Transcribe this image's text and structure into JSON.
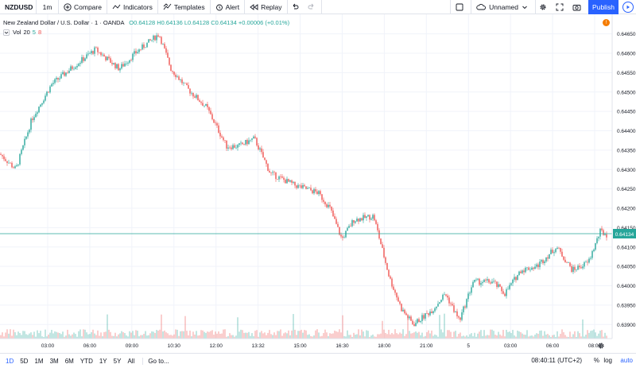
{
  "toolbar": {
    "symbol": "NZDUSD",
    "interval": "1m",
    "compare": "Compare",
    "indicators": "Indicators",
    "templates": "Templates",
    "alert": "Alert",
    "replay": "Replay",
    "layout_name": "Unnamed",
    "publish": "Publish"
  },
  "legend": {
    "title": "New Zealand Dollar / U.S. Dollar · 1 · OANDA",
    "ohlc": "O0.64128 H0.64136 L0.64128 C0.64134 +0.00006 (+0.01%)",
    "vol_label": "Vol",
    "vol_len": "20",
    "vol_up": "5",
    "vol_down": "8"
  },
  "alert_badge": "!",
  "price_label": "0.64134",
  "range_bar": {
    "ranges": [
      "1D",
      "5D",
      "1M",
      "3M",
      "6M",
      "YTD",
      "1Y",
      "5Y",
      "All"
    ],
    "active": "1D",
    "goto": "Go to...",
    "clock": "08:40:11 (UTC+2)",
    "percent": "%",
    "log": "log",
    "auto": "auto"
  },
  "colors": {
    "up": "#26a69a",
    "down": "#ef5350",
    "price_line": "#26a69a",
    "accent": "#2962ff"
  },
  "chart_data": {
    "type": "candlestick",
    "y_ticks": [
      "0.64650",
      "0.64600",
      "0.64550",
      "0.64500",
      "0.64450",
      "0.64400",
      "0.64350",
      "0.64300",
      "0.64250",
      "0.64200",
      "0.64150",
      "0.64100",
      "0.64050",
      "0.64000",
      "0.63950",
      "0.63900"
    ],
    "ylim": [
      0.6388,
      0.6468
    ],
    "x_ticks": [
      "03:00",
      "06:00",
      "09:00",
      "10:30",
      "12:00",
      "13:32",
      "15:00",
      "16:30",
      "18:00",
      "21:00",
      "5",
      "03:00",
      "06:00",
      "08:00"
    ],
    "last_price": 0.64134,
    "trend": [
      [
        0,
        0.6434
      ],
      [
        20,
        0.643
      ],
      [
        40,
        0.6443
      ],
      [
        65,
        0.6452
      ],
      [
        95,
        0.6457
      ],
      [
        120,
        0.6461
      ],
      [
        150,
        0.6456
      ],
      [
        170,
        0.646
      ],
      [
        200,
        0.6465
      ],
      [
        215,
        0.6456
      ],
      [
        235,
        0.6451
      ],
      [
        260,
        0.6446
      ],
      [
        285,
        0.6436
      ],
      [
        300,
        0.6436
      ],
      [
        320,
        0.6438
      ],
      [
        340,
        0.6429
      ],
      [
        370,
        0.6426
      ],
      [
        400,
        0.6424
      ],
      [
        415,
        0.642
      ],
      [
        430,
        0.6412
      ],
      [
        445,
        0.6417
      ],
      [
        470,
        0.6418
      ],
      [
        490,
        0.6402
      ],
      [
        505,
        0.6394
      ],
      [
        520,
        0.639
      ],
      [
        545,
        0.6394
      ],
      [
        560,
        0.6398
      ],
      [
        578,
        0.6391
      ],
      [
        595,
        0.6401
      ],
      [
        620,
        0.6401
      ],
      [
        635,
        0.6398
      ],
      [
        655,
        0.6404
      ],
      [
        675,
        0.6405
      ],
      [
        700,
        0.641
      ],
      [
        720,
        0.6404
      ],
      [
        740,
        0.6406
      ],
      [
        755,
        0.6414
      ],
      [
        765,
        0.6413
      ]
    ]
  }
}
